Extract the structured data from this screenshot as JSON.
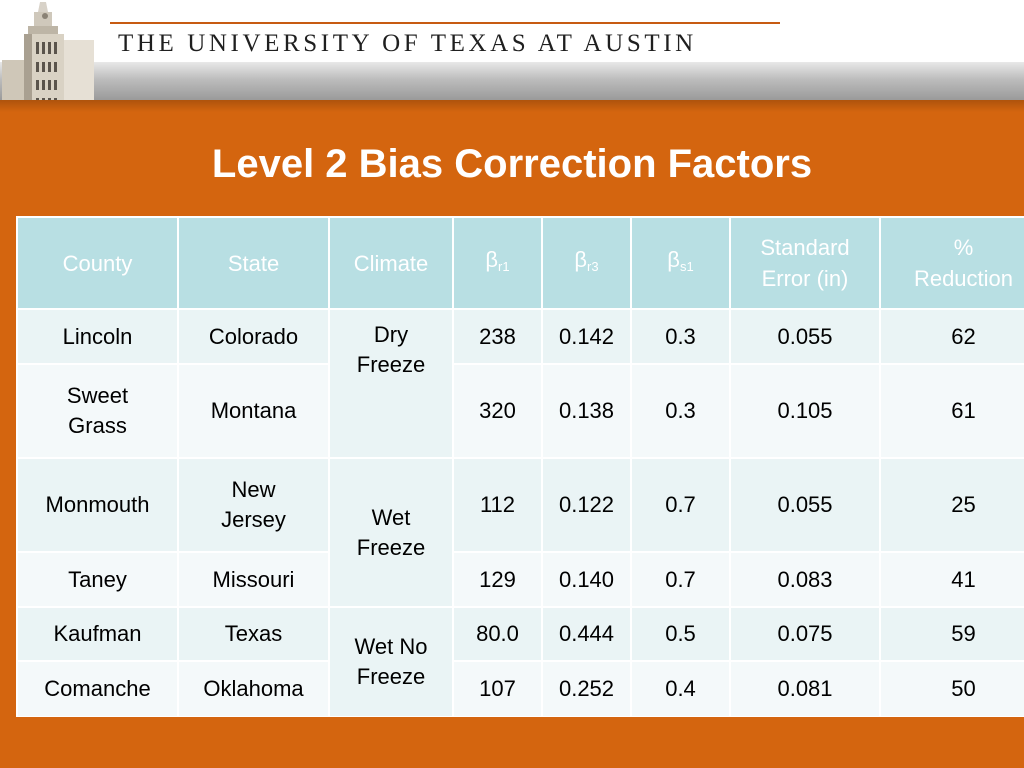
{
  "header": {
    "university_name": "THE UNIVERSITY OF TEXAS AT AUSTIN",
    "tower_icon": "ut-tower-icon"
  },
  "slide": {
    "title": "Level 2 Bias Correction Factors"
  },
  "table": {
    "columns": {
      "county": "County",
      "state": "State",
      "climate": "Climate",
      "beta_r1": {
        "symbol": "β",
        "sub": "r1"
      },
      "beta_r3": {
        "symbol": "β",
        "sub": "r3"
      },
      "beta_s1": {
        "symbol": "β",
        "sub": "s1"
      },
      "std_error_line1": "Standard",
      "std_error_line2": "Error (in)",
      "reduction_line1": "%",
      "reduction_line2": "Reduction"
    },
    "climates": {
      "dry": {
        "line1": "Dry",
        "line2": "Freeze"
      },
      "wet": {
        "line1": "Wet",
        "line2": "Freeze"
      },
      "wet_no": {
        "line1": "Wet No",
        "line2": "Freeze"
      }
    },
    "rows": [
      {
        "county": "Lincoln",
        "state": "Colorado",
        "beta_r1": "238",
        "beta_r3": "0.142",
        "beta_s1": "0.3",
        "std_error": "0.055",
        "reduction": "62"
      },
      {
        "county_line1": "Sweet",
        "county_line2": "Grass",
        "state": "Montana",
        "beta_r1": "320",
        "beta_r3": "0.138",
        "beta_s1": "0.3",
        "std_error": "0.105",
        "reduction": "61"
      },
      {
        "county": "Monmouth",
        "state_line1": "New",
        "state_line2": "Jersey",
        "beta_r1": "112",
        "beta_r3": "0.122",
        "beta_s1": "0.7",
        "std_error": "0.055",
        "reduction": "25"
      },
      {
        "county": "Taney",
        "state": "Missouri",
        "beta_r1": "129",
        "beta_r3": "0.140",
        "beta_s1": "0.7",
        "std_error": "0.083",
        "reduction": "41"
      },
      {
        "county": "Kaufman",
        "state": "Texas",
        "beta_r1": "80.0",
        "beta_r3": "0.444",
        "beta_s1": "0.5",
        "std_error": "0.075",
        "reduction": "59"
      },
      {
        "county": "Comanche",
        "state": "Oklahoma",
        "beta_r1": "107",
        "beta_r3": "0.252",
        "beta_s1": "0.4",
        "std_error": "0.081",
        "reduction": "50"
      }
    ]
  },
  "colors": {
    "accent_orange": "#d4650f",
    "header_cell": "#b8dfe3",
    "body_cell": "#eaf4f5"
  }
}
